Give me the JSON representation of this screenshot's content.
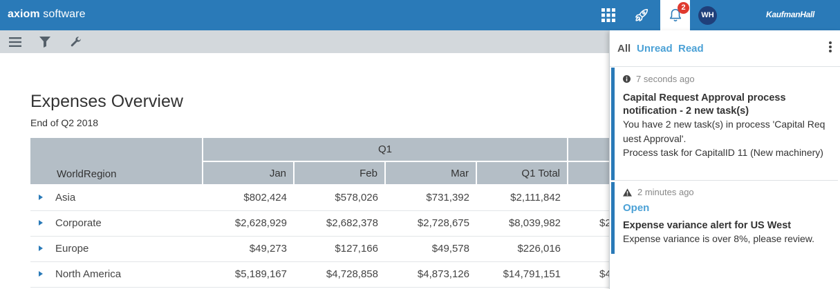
{
  "header": {
    "brand_bold": "axiom",
    "brand_rest": " software",
    "notification_count": "2",
    "avatar_initials": "WH",
    "partner_logo": "KaufmanHall",
    "icons": [
      "apps-grid-icon",
      "rocket-icon",
      "bell-icon"
    ],
    "colors": {
      "header": "#2a7ab8",
      "badge": "#e03a2f",
      "avatar": "#1f3f7a"
    }
  },
  "toolbar": {
    "icons": [
      "menu-icon",
      "filter-icon",
      "wrench-icon"
    ]
  },
  "report": {
    "title": "Expenses Overview",
    "subtitle": "End of Q2 2018",
    "group_header": "Q1",
    "row_header": "WorldRegion",
    "columns": [
      "Jan",
      "Feb",
      "Mar",
      "Q1 Total"
    ],
    "rows": [
      {
        "region": "Asia",
        "values": [
          "$802,424",
          "$578,026",
          "$731,392",
          "$2,111,842"
        ],
        "next_partial": ""
      },
      {
        "region": "Corporate",
        "values": [
          "$2,628,929",
          "$2,682,378",
          "$2,728,675",
          "$8,039,982"
        ],
        "next_partial": "$2"
      },
      {
        "region": "Europe",
        "values": [
          "$49,273",
          "$127,166",
          "$49,578",
          "$226,016"
        ],
        "next_partial": ""
      },
      {
        "region": "North America",
        "values": [
          "$5,189,167",
          "$4,728,858",
          "$4,873,126",
          "$14,791,151"
        ],
        "next_partial": "$4"
      }
    ]
  },
  "notifications": {
    "tabs": {
      "all": "All",
      "unread": "Unread",
      "read": "Read"
    },
    "items": [
      {
        "icon": "info-icon",
        "time": "7 seconds ago",
        "title": "Capital Request Approval process notification - 2 new task(s)",
        "body": [
          "You have 2 new task(s) in process 'Capital Request Approval'.",
          "Process task for CapitalID 11 (New machinery)"
        ]
      },
      {
        "icon": "warning-icon",
        "time": "2 minutes ago",
        "link": "Open",
        "title": "Expense variance alert for US West",
        "body": [
          "Expense variance is over 8%, please review."
        ]
      }
    ]
  }
}
